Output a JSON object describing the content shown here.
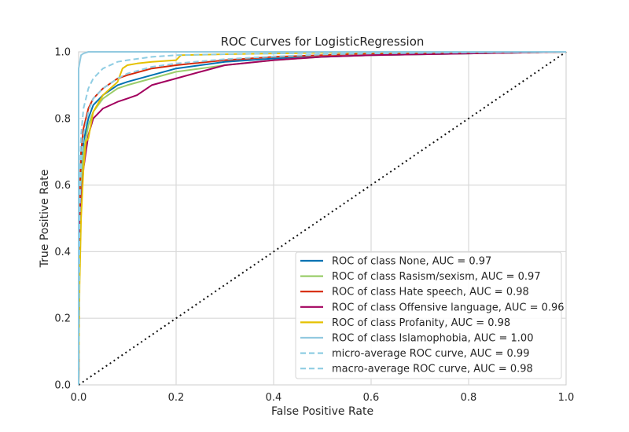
{
  "chart_data": {
    "type": "line",
    "title": "ROC Curves for LogisticRegression",
    "xlabel": "False Positive Rate",
    "ylabel": "True Positive Rate",
    "xlim": [
      0.0,
      1.0
    ],
    "ylim": [
      0.0,
      1.0
    ],
    "xticks": [
      "0.0",
      "0.2",
      "0.4",
      "0.6",
      "0.8",
      "1.0"
    ],
    "yticks": [
      "0.0",
      "0.2",
      "0.4",
      "0.6",
      "0.8",
      "1.0"
    ],
    "grid": true,
    "legend_position": "lower-right",
    "series": [
      {
        "name": "ROC of class None, AUC = 0.97",
        "color": "#0072B2",
        "style": "solid",
        "x": [
          0,
          0.002,
          0.005,
          0.01,
          0.02,
          0.03,
          0.05,
          0.08,
          0.1,
          0.15,
          0.2,
          0.3,
          0.4,
          0.5,
          0.6,
          0.8,
          1.0
        ],
        "y": [
          0,
          0.5,
          0.65,
          0.73,
          0.8,
          0.84,
          0.87,
          0.9,
          0.91,
          0.93,
          0.95,
          0.97,
          0.98,
          0.985,
          0.99,
          0.995,
          1.0
        ]
      },
      {
        "name": "ROC of class Rasism/sexism, AUC = 0.97",
        "color": "#9ACD6A",
        "style": "solid",
        "x": [
          0,
          0.002,
          0.005,
          0.01,
          0.02,
          0.03,
          0.05,
          0.08,
          0.1,
          0.15,
          0.2,
          0.3,
          0.4,
          0.5,
          0.6,
          0.8,
          1.0
        ],
        "y": [
          0,
          0.45,
          0.6,
          0.7,
          0.78,
          0.82,
          0.86,
          0.89,
          0.9,
          0.92,
          0.94,
          0.96,
          0.975,
          0.985,
          0.99,
          0.995,
          1.0
        ]
      },
      {
        "name": "ROC of class Hate speech, AUC = 0.98",
        "color": "#D62808",
        "style": "solid",
        "x": [
          0,
          0.002,
          0.005,
          0.01,
          0.02,
          0.03,
          0.05,
          0.08,
          0.1,
          0.15,
          0.2,
          0.3,
          0.4,
          0.5,
          0.6,
          0.8,
          1.0
        ],
        "y": [
          0,
          0.55,
          0.7,
          0.77,
          0.83,
          0.86,
          0.89,
          0.92,
          0.93,
          0.95,
          0.96,
          0.975,
          0.985,
          0.99,
          0.995,
          0.998,
          1.0
        ]
      },
      {
        "name": "ROC of class Offensive language, AUC = 0.96",
        "color": "#A2005E",
        "style": "solid",
        "x": [
          0,
          0.002,
          0.005,
          0.01,
          0.02,
          0.03,
          0.05,
          0.08,
          0.1,
          0.12,
          0.15,
          0.2,
          0.25,
          0.3,
          0.4,
          0.5,
          0.6,
          0.8,
          1.0
        ],
        "y": [
          0,
          0.4,
          0.55,
          0.65,
          0.75,
          0.8,
          0.83,
          0.85,
          0.86,
          0.87,
          0.9,
          0.92,
          0.94,
          0.96,
          0.975,
          0.985,
          0.99,
          0.995,
          1.0
        ]
      },
      {
        "name": "ROC of class Profanity, AUC = 0.98",
        "color": "#E5C100",
        "style": "solid",
        "x": [
          0,
          0.002,
          0.005,
          0.01,
          0.015,
          0.02,
          0.03,
          0.05,
          0.08,
          0.09,
          0.1,
          0.12,
          0.15,
          0.2,
          0.21,
          0.3,
          0.4,
          0.5,
          0.6,
          0.8,
          1.0
        ],
        "y": [
          0,
          0.3,
          0.5,
          0.65,
          0.73,
          0.74,
          0.82,
          0.87,
          0.91,
          0.95,
          0.96,
          0.965,
          0.97,
          0.975,
          0.99,
          0.993,
          0.995,
          0.997,
          0.998,
          0.999,
          1.0
        ]
      },
      {
        "name": "ROC of class Islamophobia, AUC = 1.00",
        "color": "#92CAE0",
        "style": "solid",
        "x": [
          0,
          0.0,
          0.005,
          0.01,
          0.02,
          0.3,
          0.6,
          0.9,
          1.0
        ],
        "y": [
          0,
          0.95,
          0.99,
          0.995,
          1.0,
          1.0,
          1.0,
          1.0,
          1.0
        ]
      },
      {
        "name": "micro-average ROC curve, AUC = 0.99",
        "color": "#8FCDE3",
        "style": "dashed",
        "x": [
          0,
          0.002,
          0.005,
          0.01,
          0.02,
          0.03,
          0.05,
          0.08,
          0.1,
          0.15,
          0.2,
          0.3,
          0.4,
          0.5,
          0.6,
          0.8,
          1.0
        ],
        "y": [
          0,
          0.6,
          0.75,
          0.83,
          0.89,
          0.92,
          0.95,
          0.97,
          0.975,
          0.985,
          0.99,
          0.993,
          0.995,
          0.997,
          0.998,
          0.999,
          1.0
        ]
      },
      {
        "name": "macro-average ROC curve, AUC = 0.98",
        "color": "#8FCDE3",
        "style": "dashed",
        "x": [
          0,
          0.002,
          0.005,
          0.01,
          0.02,
          0.03,
          0.05,
          0.08,
          0.1,
          0.15,
          0.2,
          0.3,
          0.4,
          0.5,
          0.6,
          0.8,
          1.0
        ],
        "y": [
          0,
          0.5,
          0.66,
          0.75,
          0.82,
          0.86,
          0.89,
          0.92,
          0.935,
          0.955,
          0.965,
          0.978,
          0.986,
          0.992,
          0.995,
          0.998,
          1.0
        ]
      }
    ],
    "reference_line": {
      "color": "#111111",
      "style": "dotted",
      "x": [
        0,
        1
      ],
      "y": [
        0,
        1
      ]
    }
  }
}
